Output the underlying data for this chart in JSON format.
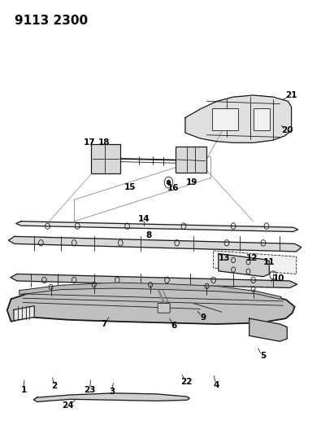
{
  "title": "9113 2300",
  "bg_color": "#ffffff",
  "line_color": "#1a1a1a",
  "label_color": "#000000",
  "title_fontsize": 11,
  "label_fontsize": 7.5,
  "fig_width": 4.11,
  "fig_height": 5.33,
  "dpi": 100
}
